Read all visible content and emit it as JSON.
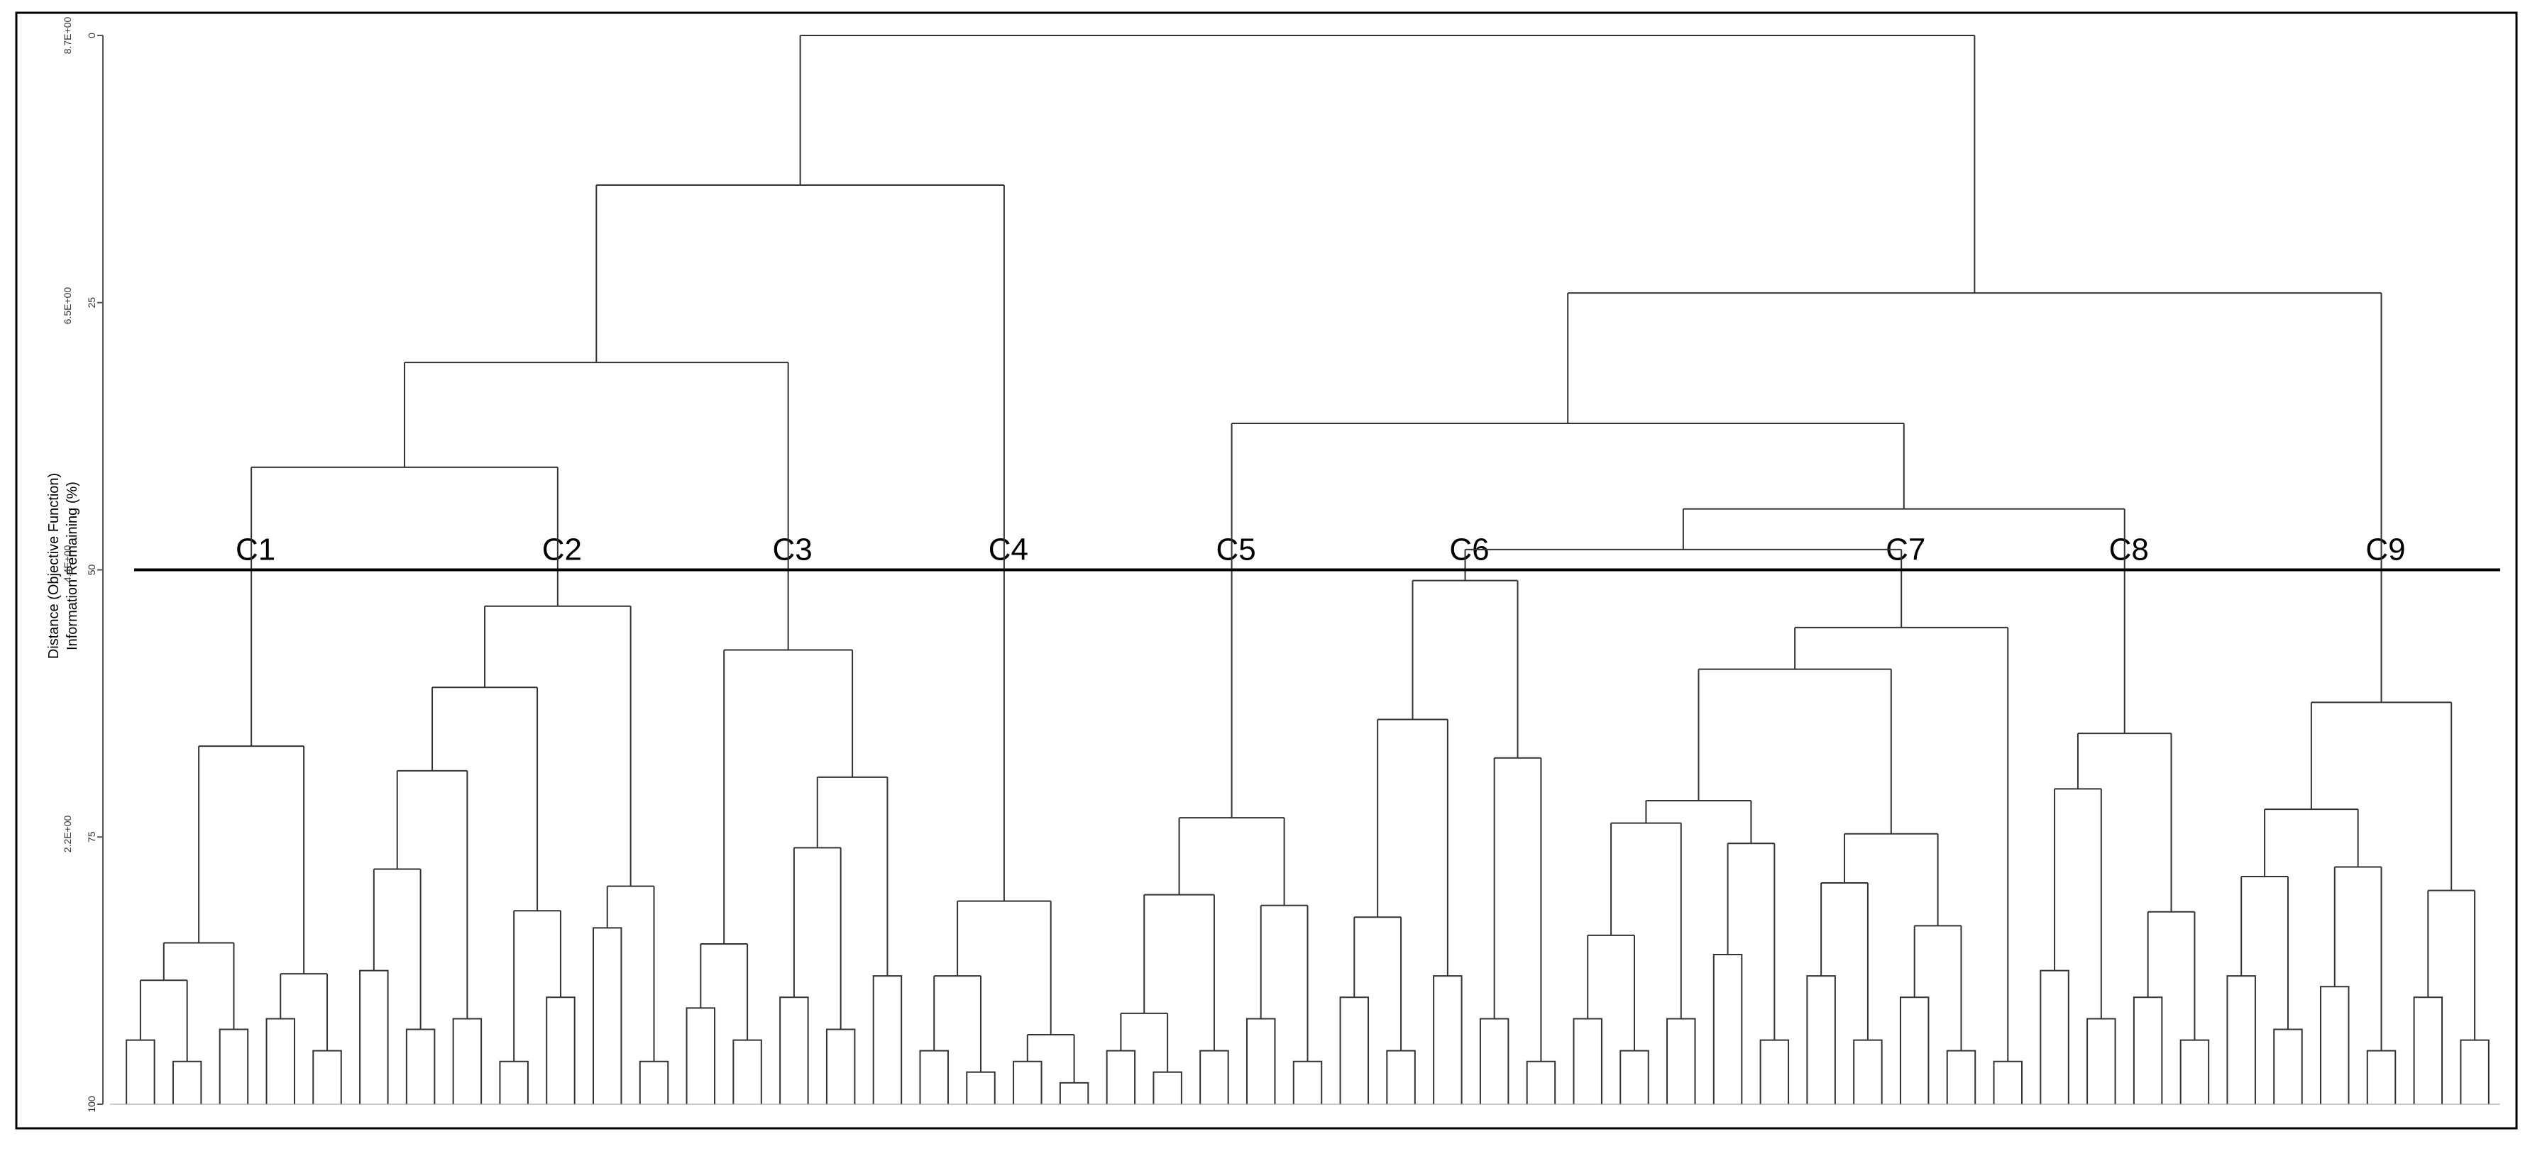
{
  "chart_data": {
    "type": "dendrogram",
    "x_axis_labels": [
      "Distance (Objective Function)",
      "Information Remaining (%)"
    ],
    "ylim": [
      0,
      100
    ],
    "yticks": [
      0,
      25,
      50,
      75,
      100
    ],
    "y2lim": [
      8.7,
      0
    ],
    "y2ticks": [
      {
        "value": 8.7,
        "label": "8.7E+00"
      },
      {
        "value": 6.5,
        "label": "6.5E+00"
      },
      {
        "value": 4.4,
        "label": "4.4E+00"
      },
      {
        "value": 2.2,
        "label": "2.2E+00"
      },
      0
    ],
    "cutoff": 50,
    "color": "#333333",
    "tree": {
      "height": 0,
      "children": [
        {
          "height": 14,
          "children": [
            {
              "height": 30.6,
              "children": [
                {
                  "height": 40.4,
                  "children": [
                    {
                      "label": "C1",
                      "height": 66.5,
                      "children": [
                        {
                          "height": 84.9,
                          "children": [
                            {
                              "height": 88.4,
                              "children": [
                                {
                                  "height": 94
                                },
                                {
                                  "height": 96
                                }
                              ]
                            },
                            {
                              "height": 93
                            }
                          ]
                        },
                        {
                          "height": 87.8,
                          "children": [
                            {
                              "height": 92
                            },
                            {
                              "height": 95
                            }
                          ]
                        }
                      ]
                    },
                    {
                      "label": "C2",
                      "height": 53.4,
                      "children": [
                        {
                          "height": 61,
                          "children": [
                            {
                              "height": 68.8,
                              "children": [
                                {
                                  "height": 78,
                                  "children": [
                                    {
                                      "height": 87.5
                                    },
                                    {
                                      "height": 93
                                    }
                                  ]
                                },
                                {
                                  "height": 92
                                }
                              ]
                            },
                            {
                              "height": 81.9,
                              "children": [
                                {
                                  "height": 96
                                },
                                {
                                  "height": 90
                                }
                              ]
                            }
                          ]
                        },
                        {
                          "height": 79.6,
                          "children": [
                            {
                              "height": 83.5
                            },
                            {
                              "height": 96
                            }
                          ]
                        }
                      ]
                    }
                  ]
                },
                {
                  "label": "C3",
                  "height": 57.5,
                  "children": [
                    {
                      "height": 85,
                      "children": [
                        {
                          "height": 91
                        },
                        {
                          "height": 94
                        }
                      ]
                    },
                    {
                      "height": 69.4,
                      "children": [
                        {
                          "height": 76,
                          "children": [
                            {
                              "height": 90
                            },
                            {
                              "height": 93
                            }
                          ]
                        },
                        {
                          "height": 88
                        }
                      ]
                    }
                  ]
                }
              ]
            },
            {
              "label": "C4",
              "height": 81,
              "children": [
                {
                  "height": 88,
                  "children": [
                    {
                      "height": 95
                    },
                    {
                      "height": 97
                    }
                  ]
                },
                {
                  "height": 93.5,
                  "children": [
                    {
                      "height": 96
                    },
                    {
                      "height": 98
                    }
                  ]
                }
              ]
            }
          ]
        },
        {
          "height": 24.1,
          "children": [
            {
              "height": 36.3,
              "children": [
                {
                  "label": "C5",
                  "height": 73.2,
                  "children": [
                    {
                      "height": 80.4,
                      "children": [
                        {
                          "height": 91.5,
                          "children": [
                            {
                              "height": 95
                            },
                            {
                              "height": 97
                            }
                          ]
                        },
                        {
                          "height": 95
                        }
                      ]
                    },
                    {
                      "height": 81.4,
                      "children": [
                        {
                          "height": 92
                        },
                        {
                          "height": 96
                        }
                      ]
                    }
                  ]
                },
                {
                  "height": 44.3,
                  "children": [
                    {
                      "height": 48.1,
                      "children": [
                        {
                          "label": "C6",
                          "height": 51,
                          "children": [
                            {
                              "height": 64,
                              "children": [
                                {
                                  "height": 82.5,
                                  "children": [
                                    {
                                      "height": 90
                                    },
                                    {
                                      "height": 95
                                    }
                                  ]
                                },
                                {
                                  "height": 88
                                }
                              ]
                            },
                            {
                              "height": 67.6,
                              "children": [
                                {
                                  "height": 92
                                },
                                {
                                  "height": 96
                                }
                              ]
                            }
                          ]
                        },
                        {
                          "label": "C7",
                          "height": 55.4,
                          "children": [
                            {
                              "height": 59.3,
                              "children": [
                                {
                                  "height": 71.6,
                                  "children": [
                                    {
                                      "height": 73.7,
                                      "children": [
                                        {
                                          "height": 84.2,
                                          "children": [
                                            {
                                              "height": 92
                                            },
                                            {
                                              "height": 95
                                            }
                                          ]
                                        },
                                        {
                                          "height": 92
                                        }
                                      ]
                                    },
                                    {
                                      "height": 75.6,
                                      "children": [
                                        {
                                          "height": 86
                                        },
                                        {
                                          "height": 94
                                        }
                                      ]
                                    }
                                  ]
                                },
                                {
                                  "height": 74.7,
                                  "children": [
                                    {
                                      "height": 79.3,
                                      "children": [
                                        {
                                          "height": 88
                                        },
                                        {
                                          "height": 94
                                        }
                                      ]
                                    },
                                    {
                                      "height": 83.3,
                                      "children": [
                                        {
                                          "height": 90
                                        },
                                        {
                                          "height": 95
                                        }
                                      ]
                                    }
                                  ]
                                }
                              ]
                            },
                            {
                              "height": 96
                            }
                          ]
                        }
                      ]
                    },
                    {
                      "label": "C8",
                      "height": 65.3,
                      "children": [
                        {
                          "height": 70.5,
                          "children": [
                            {
                              "height": 87.5
                            },
                            {
                              "height": 92
                            }
                          ]
                        },
                        {
                          "height": 82,
                          "children": [
                            {
                              "height": 90
                            },
                            {
                              "height": 94
                            }
                          ]
                        }
                      ]
                    }
                  ]
                }
              ]
            },
            {
              "label": "C9",
              "height": 62.4,
              "children": [
                {
                  "height": 72.4,
                  "children": [
                    {
                      "height": 78.7,
                      "children": [
                        {
                          "height": 88
                        },
                        {
                          "height": 93
                        }
                      ]
                    },
                    {
                      "height": 77.8,
                      "children": [
                        {
                          "height": 89
                        },
                        {
                          "height": 95
                        }
                      ]
                    }
                  ]
                },
                {
                  "height": 80,
                  "children": [
                    {
                      "height": 90
                    },
                    {
                      "height": 94
                    }
                  ]
                }
              ]
            }
          ]
        }
      ]
    }
  }
}
